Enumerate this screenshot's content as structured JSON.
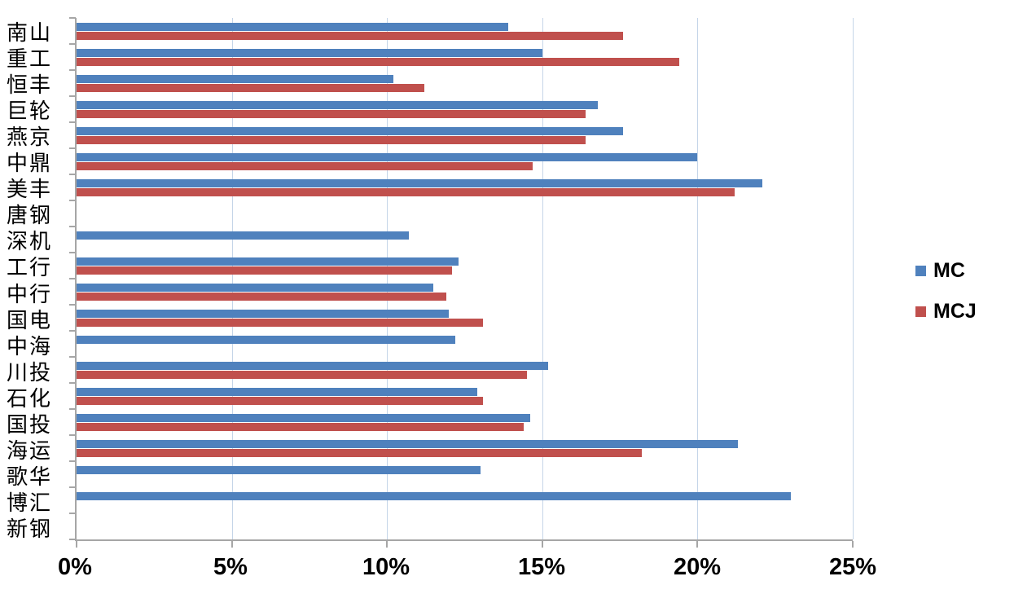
{
  "chart_data": {
    "type": "bar",
    "orientation": "horizontal",
    "title": "",
    "xlabel": "",
    "ylabel": "",
    "xlim": [
      0,
      25
    ],
    "x_tick_labels": [
      "0%",
      "5%",
      "10%",
      "15%",
      "20%",
      "25%"
    ],
    "x_tick_values": [
      0,
      5,
      10,
      15,
      20,
      25
    ],
    "grid": true,
    "legend_position": "right",
    "categories": [
      "南山",
      "重工",
      "恒丰",
      "巨轮",
      "燕京",
      "中鼎",
      "美丰",
      "唐钢",
      "深机",
      "工行",
      "中行",
      "国电",
      "中海",
      "川投",
      "石化",
      "国投",
      "海运",
      "歌华",
      "博汇",
      "新钢"
    ],
    "series": [
      {
        "name": "MC",
        "color": "#4f81bd",
        "values": [
          13.9,
          15.0,
          10.2,
          16.8,
          17.6,
          20.0,
          22.1,
          null,
          10.7,
          12.3,
          11.5,
          12.0,
          12.2,
          15.2,
          12.9,
          14.6,
          21.3,
          13.0,
          23.0,
          null
        ]
      },
      {
        "name": "MCJ",
        "color": "#c0504d",
        "values": [
          17.6,
          19.4,
          11.2,
          16.4,
          16.4,
          14.7,
          21.2,
          null,
          null,
          12.1,
          11.9,
          13.1,
          null,
          14.5,
          13.1,
          14.4,
          18.2,
          null,
          null,
          null
        ]
      }
    ],
    "colors": {
      "gridline": "#c5d5e8",
      "axis_line": "#a6a6a6",
      "text": "#000000",
      "background": "#ffffff"
    }
  }
}
